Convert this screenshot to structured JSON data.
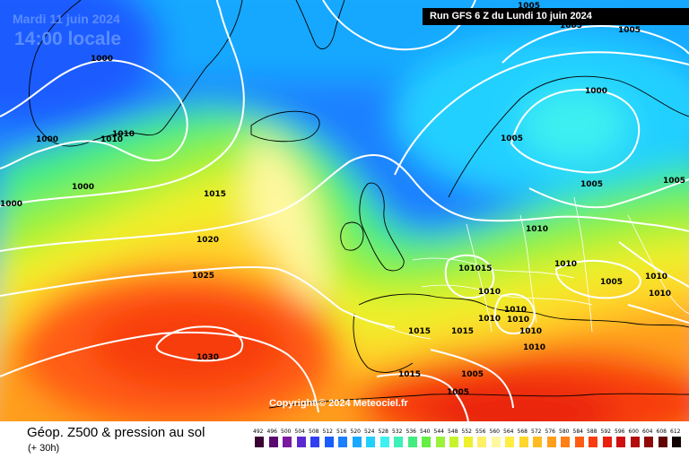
{
  "header": {
    "date": "Mardi 11 juin 2024",
    "time": "14:00 locale",
    "run_info": "Run GFS 6 Z du Lundi 10 juin 2024"
  },
  "copyright": "Copyright © 2024 Meteociel.fr",
  "footer": {
    "title": "Géop. Z500 & pression au sol",
    "subtitle": "(+ 30h)"
  },
  "color_scale": {
    "values": [
      "492",
      "496",
      "500",
      "504",
      "508",
      "512",
      "516",
      "520",
      "524",
      "528",
      "532",
      "536",
      "540",
      "544",
      "548",
      "552",
      "556",
      "560",
      "564",
      "568",
      "572",
      "576",
      "580",
      "584",
      "588",
      "592",
      "596",
      "600",
      "604",
      "608",
      "612"
    ],
    "colors": [
      "#3b0033",
      "#5a0a6e",
      "#7a1aa0",
      "#5a2ad0",
      "#3040f0",
      "#1a5cff",
      "#1a80ff",
      "#18a8ff",
      "#22d0ff",
      "#3ef0f0",
      "#3cf0b8",
      "#44ec80",
      "#66ee44",
      "#9af23a",
      "#c6f42c",
      "#eef02a",
      "#fff066",
      "#fff8a0",
      "#ffee40",
      "#ffd62a",
      "#ffbc22",
      "#ff9e1c",
      "#ff7e16",
      "#ff5c12",
      "#f83c10",
      "#e8200c",
      "#d01010",
      "#b40c0c",
      "#900808",
      "#600404",
      "#100000"
    ]
  },
  "isobar_labels": [
    {
      "text": "1005"
    },
    {
      "text": "1005"
    },
    {
      "text": "1005"
    },
    {
      "text": "1000"
    },
    {
      "text": "1000"
    },
    {
      "text": "1010"
    },
    {
      "text": "1000"
    },
    {
      "text": "1010"
    },
    {
      "text": "1000"
    },
    {
      "text": "1015"
    },
    {
      "text": "1005"
    },
    {
      "text": "1005"
    },
    {
      "text": "1005"
    },
    {
      "text": "1020"
    },
    {
      "text": "1010"
    },
    {
      "text": "1025"
    },
    {
      "text": "1010"
    },
    {
      "text": "101015"
    },
    {
      "text": "1010"
    },
    {
      "text": "1005"
    },
    {
      "text": "1010"
    },
    {
      "text": "1010"
    },
    {
      "text": "1030"
    },
    {
      "text": "1015"
    },
    {
      "text": "1010"
    },
    {
      "text": "1010"
    },
    {
      "text": "1015"
    },
    {
      "text": "1010"
    },
    {
      "text": "1015"
    },
    {
      "text": "1010"
    },
    {
      "text": "1010"
    },
    {
      "text": "1005"
    },
    {
      "text": "1005"
    }
  ]
}
